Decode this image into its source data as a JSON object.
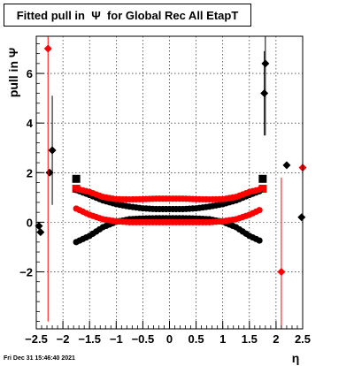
{
  "title": "Fitted pull in  Ψ  for Global Rec All EtapT",
  "timestamp": "Fri Dec 31 15:46:40 2021",
  "chart_data": {
    "type": "scatter",
    "title": "Fitted pull in  Ψ  for Global Rec All EtapT",
    "xlabel": "η",
    "ylabel": "pull in  Ψ",
    "xlim": [
      -2.5,
      2.5
    ],
    "ylim": [
      -4.3,
      7.5
    ],
    "xticks": [
      -2.5,
      -2,
      -1.5,
      -1,
      -0.5,
      0,
      0.5,
      1,
      1.5,
      2,
      2.5
    ],
    "xtick_labels": [
      "−2.5",
      "−2",
      "−1.5",
      "−1",
      "−0.5",
      "0",
      "0.5",
      "1",
      "1.5",
      "2",
      "2.5"
    ],
    "yticks": [
      -2,
      0,
      2,
      4,
      6
    ],
    "ytick_labels": [
      "−2",
      "0",
      "2",
      "4",
      "6"
    ],
    "grid": true,
    "colors": {
      "black": "#000000",
      "red": "#ff0000"
    },
    "series": [
      {
        "color": "#000000",
        "marker": "diamond",
        "points": [
          {
            "x": -2.45,
            "y": -0.15,
            "err": 0
          },
          {
            "x": -2.42,
            "y": -0.4,
            "err": 0
          },
          {
            "x": -2.25,
            "y": 2.0,
            "err": 0
          },
          {
            "x": -2.2,
            "y": 2.9,
            "err": 2.2
          },
          {
            "x": 1.78,
            "y": 5.2,
            "err": 1.7
          },
          {
            "x": 1.8,
            "y": 6.4,
            "err": 2.9
          },
          {
            "x": 2.2,
            "y": 2.3,
            "err": 0
          },
          {
            "x": 2.48,
            "y": 0.2,
            "err": 0
          }
        ]
      },
      {
        "color": "#ff0000",
        "marker": "diamond",
        "points": [
          {
            "x": -2.28,
            "y": 7.0,
            "err": 11.0
          },
          {
            "x": 2.1,
            "y": -2.0,
            "err": 3.8
          },
          {
            "x": 2.5,
            "y": 2.2,
            "err": 3.4
          }
        ]
      },
      {
        "color": "#000000",
        "marker": "square",
        "points": [
          {
            "x": -1.75,
            "y": 1.75,
            "err": 0
          },
          {
            "x": 1.75,
            "y": 1.75,
            "err": 0
          }
        ]
      },
      {
        "color": "#ff0000",
        "marker": "square",
        "points": [
          {
            "x": -1.75,
            "y": 1.35,
            "err": 0
          },
          {
            "x": 1.75,
            "y": 1.35,
            "err": 0
          }
        ]
      },
      {
        "color": "#000000",
        "marker": "band",
        "x": [
          -1.75,
          -1.5,
          -1.25,
          -1.0,
          -0.75,
          -0.5,
          -0.25,
          0.0,
          0.25,
          0.5,
          0.75,
          1.0,
          1.25,
          1.5,
          1.75
        ],
        "upper": [
          1.3,
          1.1,
          0.88,
          0.73,
          0.63,
          0.56,
          0.53,
          0.53,
          0.53,
          0.56,
          0.63,
          0.73,
          0.88,
          1.1,
          1.3
        ],
        "lower": [
          -0.8,
          -0.55,
          -0.2,
          0.02,
          0.12,
          0.15,
          0.16,
          0.16,
          0.16,
          0.15,
          0.12,
          0.02,
          -0.2,
          -0.55,
          -0.8
        ]
      },
      {
        "color": "#ff0000",
        "marker": "band",
        "x": [
          -1.75,
          -1.5,
          -1.25,
          -1.0,
          -0.75,
          -0.5,
          -0.25,
          0.0,
          0.25,
          0.5,
          0.75,
          1.0,
          1.25,
          1.5,
          1.75
        ],
        "upper": [
          1.35,
          1.22,
          1.02,
          0.93,
          0.92,
          0.93,
          0.95,
          0.95,
          0.95,
          0.93,
          0.92,
          0.93,
          1.02,
          1.22,
          1.35
        ],
        "lower": [
          0.55,
          0.3,
          0.12,
          0.04,
          0.0,
          0.0,
          0.0,
          0.0,
          0.0,
          0.0,
          0.0,
          0.04,
          0.12,
          0.3,
          0.55
        ]
      }
    ]
  }
}
